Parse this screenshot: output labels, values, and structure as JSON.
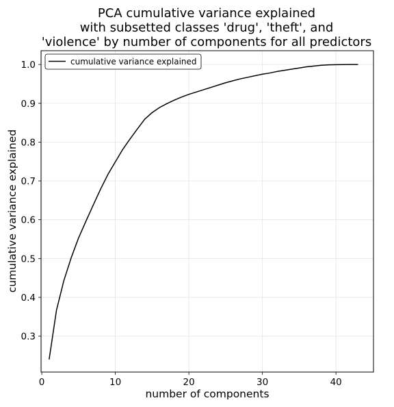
{
  "chart_data": {
    "type": "line",
    "title_lines": [
      "PCA cumulative variance explained",
      "with subsetted classes 'drug', 'theft', and",
      "'violence' by number of components for all predictors"
    ],
    "xlabel": "number of components",
    "ylabel": "cumulative variance explained",
    "xlim": [
      -0.1,
      45.1
    ],
    "ylim": [
      0.2075,
      1.0355
    ],
    "x_ticks": [
      0,
      10,
      20,
      30,
      40
    ],
    "y_ticks": [
      0.3,
      0.4,
      0.5,
      0.6,
      0.7,
      0.8,
      0.9,
      1.0
    ],
    "grid": true,
    "legend_position": "top-left",
    "line_color": "#000000",
    "series": [
      {
        "name": "cumulative variance explained",
        "x": [
          1,
          2,
          3,
          4,
          5,
          6,
          7,
          8,
          9,
          10,
          11,
          12,
          13,
          14,
          15,
          16,
          17,
          18,
          19,
          20,
          21,
          22,
          23,
          24,
          25,
          26,
          27,
          28,
          29,
          30,
          31,
          32,
          33,
          34,
          35,
          36,
          37,
          38,
          39,
          40,
          41,
          42,
          43
        ],
        "values": [
          0.24,
          0.367,
          0.443,
          0.502,
          0.553,
          0.596,
          0.638,
          0.679,
          0.717,
          0.749,
          0.781,
          0.808,
          0.834,
          0.859,
          0.876,
          0.889,
          0.899,
          0.908,
          0.916,
          0.923,
          0.929,
          0.935,
          0.941,
          0.947,
          0.953,
          0.958,
          0.963,
          0.967,
          0.971,
          0.975,
          0.978,
          0.982,
          0.985,
          0.988,
          0.991,
          0.994,
          0.996,
          0.998,
          0.999,
          0.9995,
          0.9998,
          0.9999,
          1.0
        ]
      }
    ]
  }
}
